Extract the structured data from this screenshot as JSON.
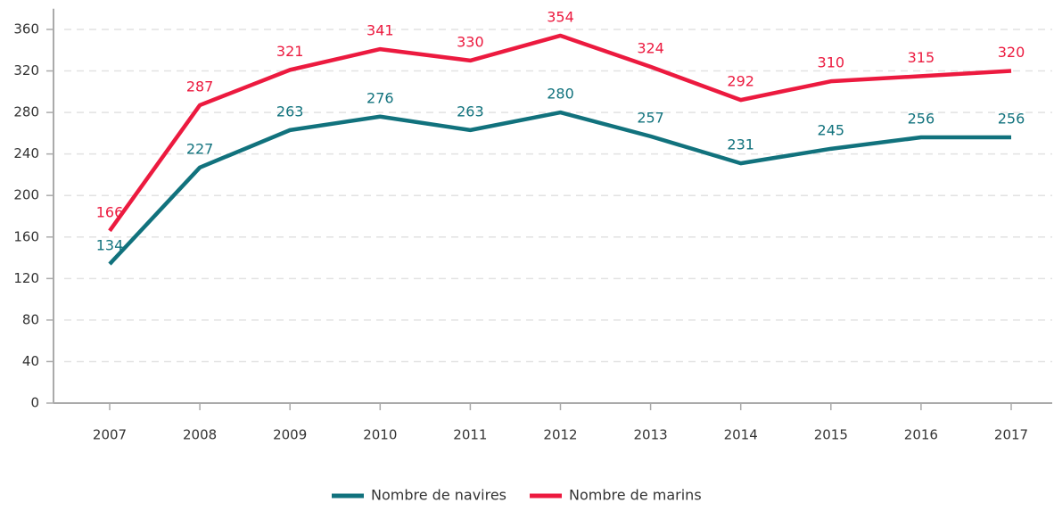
{
  "chart_data": {
    "type": "line",
    "categories": [
      "2007",
      "2008",
      "2009",
      "2010",
      "2011",
      "2012",
      "2013",
      "2014",
      "2015",
      "2016",
      "2017"
    ],
    "series": [
      {
        "name": "Nombre de navires",
        "color": "#11727d",
        "values": [
          134,
          227,
          263,
          276,
          263,
          280,
          257,
          231,
          245,
          256,
          256
        ]
      },
      {
        "name": "Nombre de marins",
        "color": "#ec1a3f",
        "values": [
          166,
          287,
          321,
          341,
          330,
          354,
          324,
          292,
          310,
          315,
          320
        ]
      }
    ],
    "ylim": [
      0,
      380
    ],
    "yticks": [
      0,
      40,
      80,
      120,
      160,
      200,
      240,
      280,
      320,
      360
    ],
    "grid": true,
    "legend": "bottom"
  }
}
